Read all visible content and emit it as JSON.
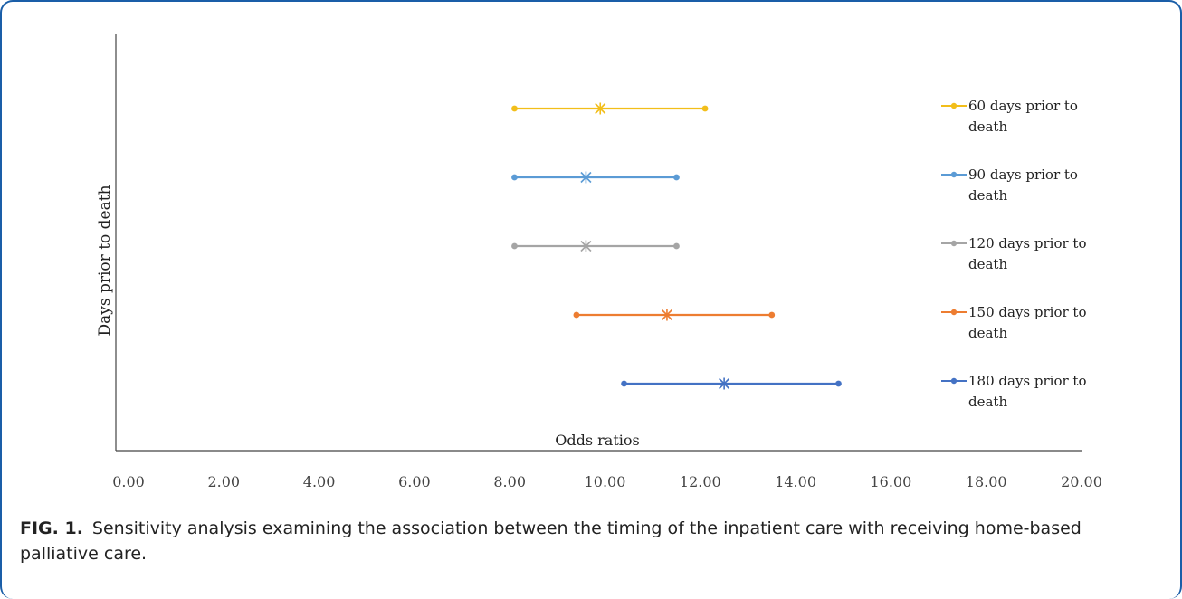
{
  "chart_data": {
    "type": "forest",
    "xlabel": "Odds ratios",
    "ylabel": "Days prior to death",
    "xlim": [
      0,
      20
    ],
    "xticks": [
      "0.00",
      "2.00",
      "4.00",
      "6.00",
      "8.00",
      "10.00",
      "12.00",
      "14.00",
      "16.00",
      "18.00",
      "20.00"
    ],
    "grid": false,
    "legend_position": "right",
    "series": [
      {
        "name": "60 days prior to death",
        "line1": "60 days prior to",
        "line2": "death",
        "low": 8.1,
        "point": 9.9,
        "high": 12.1,
        "color": "#f2be1a"
      },
      {
        "name": "90 days prior to death",
        "line1": "90 days prior to",
        "line2": "death",
        "low": 8.1,
        "point": 9.6,
        "high": 11.5,
        "color": "#5b9bd5"
      },
      {
        "name": "120 days prior to death",
        "line1": "120 days prior to",
        "line2": "death",
        "low": 8.1,
        "point": 9.6,
        "high": 11.5,
        "color": "#a5a5a5"
      },
      {
        "name": "150 days prior to death",
        "line1": "150 days prior to",
        "line2": "death",
        "low": 9.4,
        "point": 11.3,
        "high": 13.5,
        "color": "#ed7d31"
      },
      {
        "name": "180 days prior to death",
        "line1": "180 days prior to",
        "line2": "death",
        "low": 10.4,
        "point": 12.5,
        "high": 14.9,
        "color": "#4472c4"
      }
    ]
  },
  "caption": {
    "label": "FIG. 1.",
    "text": "Sensitivity analysis examining the association between the timing of the inpatient care with receiving home-based palliative care."
  }
}
